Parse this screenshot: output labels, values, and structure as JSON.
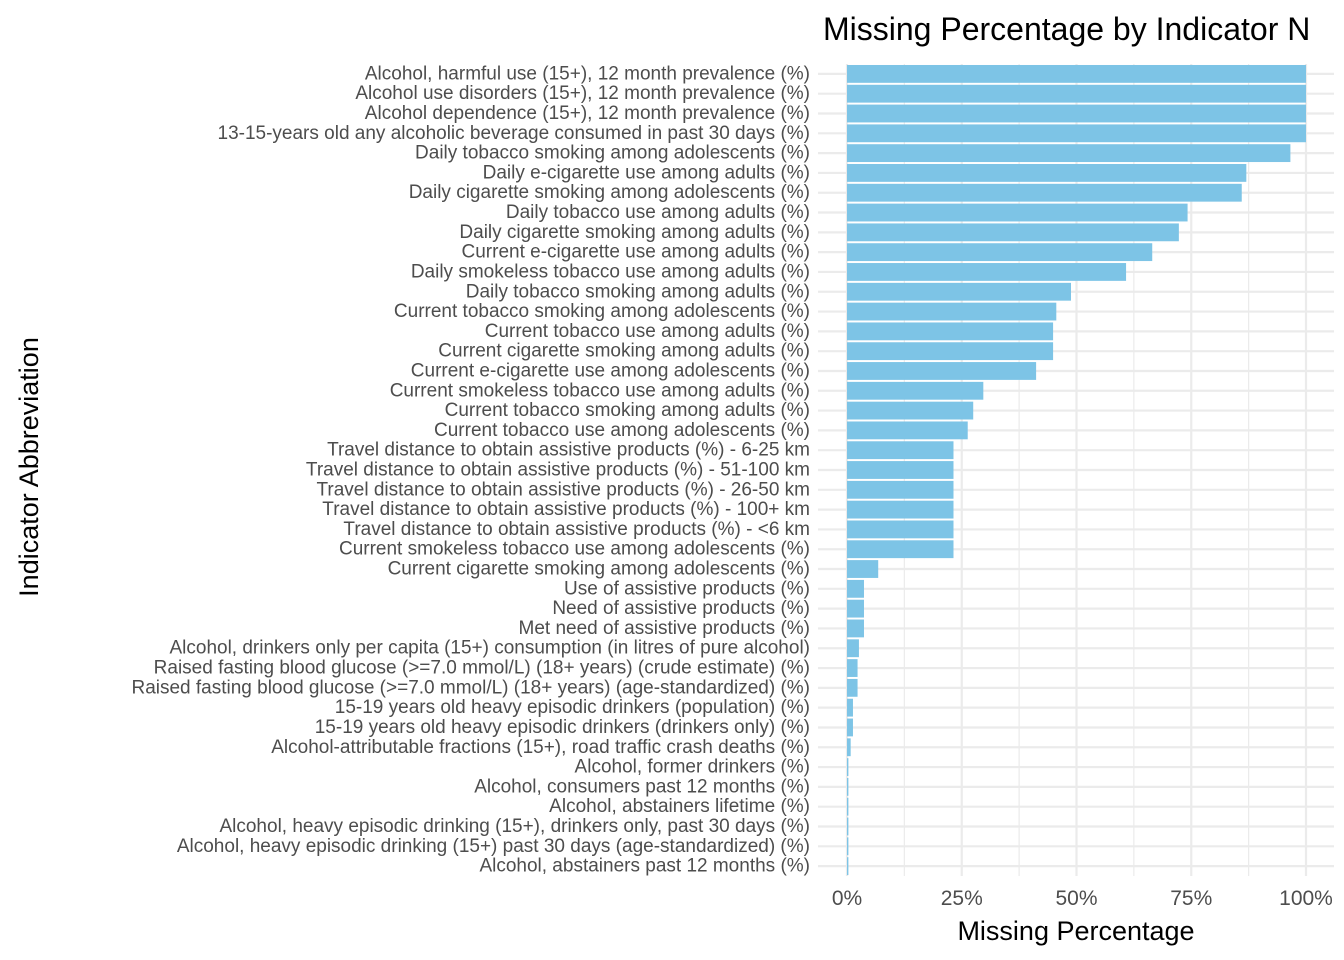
{
  "chart_data": {
    "type": "bar",
    "orientation": "horizontal",
    "title": "Missing Percentage by Indicator N",
    "xlabel": "Missing Percentage",
    "ylabel": "Indicator Abbreviation",
    "xlim": [
      0,
      100
    ],
    "x_ticks": [
      0,
      25,
      50,
      75,
      100
    ],
    "x_tick_labels": [
      "0%",
      "25%",
      "50%",
      "75%",
      "100%"
    ],
    "grid": true,
    "bar_color": "#7DC4E6",
    "grid_color": "#EBEBEB",
    "categories": [
      "Alcohol, harmful use (15+), 12 month prevalence (%)",
      "Alcohol use disorders (15+), 12 month prevalence (%)",
      "Alcohol dependence (15+), 12 month prevalence (%)",
      "13-15-years old any alcoholic beverage consumed in past 30 days (%)",
      "Daily tobacco smoking among adolescents (%)",
      "Daily e-cigarette use among adults (%)",
      "Daily cigarette smoking among adolescents (%)",
      "Daily tobacco use among adults (%)",
      "Daily cigarette smoking among adults (%)",
      "Current e-cigarette use among adults (%)",
      "Daily smokeless tobacco use among adults (%)",
      "Daily tobacco smoking among adults (%)",
      "Current tobacco smoking among adolescents (%)",
      "Current tobacco use among adults (%)",
      "Current cigarette smoking among adults (%)",
      "Current e-cigarette use among adolescents (%)",
      "Current smokeless tobacco use among adults (%)",
      "Current tobacco smoking among adults (%)",
      "Current tobacco use among adolescents (%)",
      "Travel distance to obtain assistive products (%) - 6-25 km",
      "Travel distance to obtain assistive products (%) - 51-100 km",
      "Travel distance to obtain assistive products (%) - 26-50 km",
      "Travel distance to obtain assistive products (%) - 100+ km",
      "Travel distance to obtain assistive products (%) - <6 km",
      "Current smokeless tobacco use among adolescents (%)",
      "Current cigarette smoking among adolescents (%)",
      "Use of assistive products (%)",
      "Need of assistive products (%)",
      "Met need of assistive products (%)",
      "Alcohol, drinkers only per capita (15+) consumption (in litres of pure alcohol)",
      "Raised fasting blood glucose (>=7.0 mmol/L) (18+ years) (crude estimate) (%)",
      "Raised fasting blood glucose (>=7.0 mmol/L) (18+ years) (age-standardized) (%)",
      "15-19 years old heavy episodic drinkers (population) (%)",
      "15-19 years old heavy episodic drinkers (drinkers only) (%)",
      "Alcohol-attributable fractions (15+), road traffic crash deaths (%)",
      "Alcohol, former drinkers (%)",
      "Alcohol, consumers past 12 months (%)",
      "Alcohol, abstainers lifetime (%)",
      "Alcohol, heavy episodic drinking (15+), drinkers only, past 30 days (%)",
      "Alcohol, heavy episodic drinking (15+) past 30 days (age-standardized) (%)",
      "Alcohol, abstainers past 12 months (%)"
    ],
    "values": [
      100,
      100,
      100,
      100,
      96.6,
      87.0,
      86.0,
      74.2,
      72.3,
      66.5,
      60.8,
      48.8,
      45.6,
      44.9,
      44.9,
      41.2,
      29.7,
      27.5,
      26.3,
      23.2,
      23.2,
      23.2,
      23.2,
      23.2,
      23.2,
      6.8,
      3.7,
      3.7,
      3.7,
      2.6,
      2.3,
      2.3,
      1.3,
      1.3,
      0.8,
      0.3,
      0.3,
      0.3,
      0.3,
      0.3,
      0.3
    ]
  }
}
